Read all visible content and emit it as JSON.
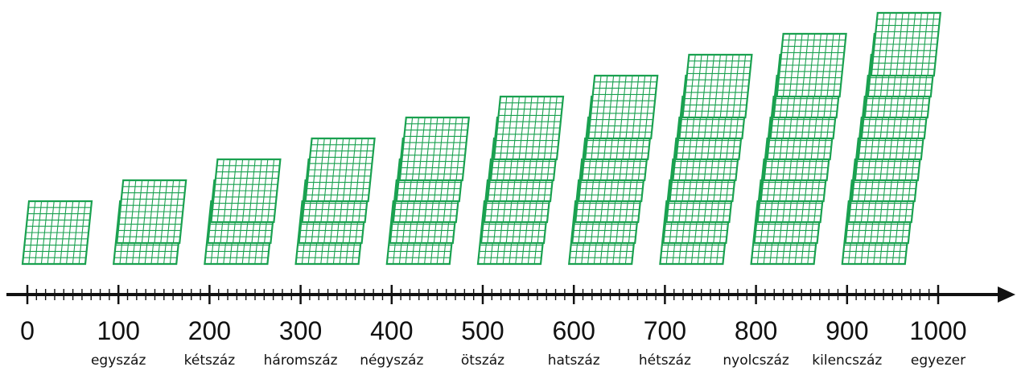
{
  "number_line": {
    "labels": [
      "0",
      "100",
      "200",
      "300",
      "400",
      "500",
      "600",
      "700",
      "800",
      "900",
      "1000"
    ],
    "words": [
      "egyszáz",
      "kétszáz",
      "háromszáz",
      "négyszáz",
      "ötszáz",
      "hatszáz",
      "hétszáz",
      "nyolcszáz",
      "kilencszáz",
      "egyezer"
    ],
    "minor_ticks_per_major": 10
  },
  "blocks": {
    "stack_counts": [
      1,
      2,
      3,
      4,
      5,
      6,
      7,
      8,
      9,
      10
    ],
    "grid_cells": 10,
    "color": "#1aa150"
  },
  "axis_color": "#111111"
}
